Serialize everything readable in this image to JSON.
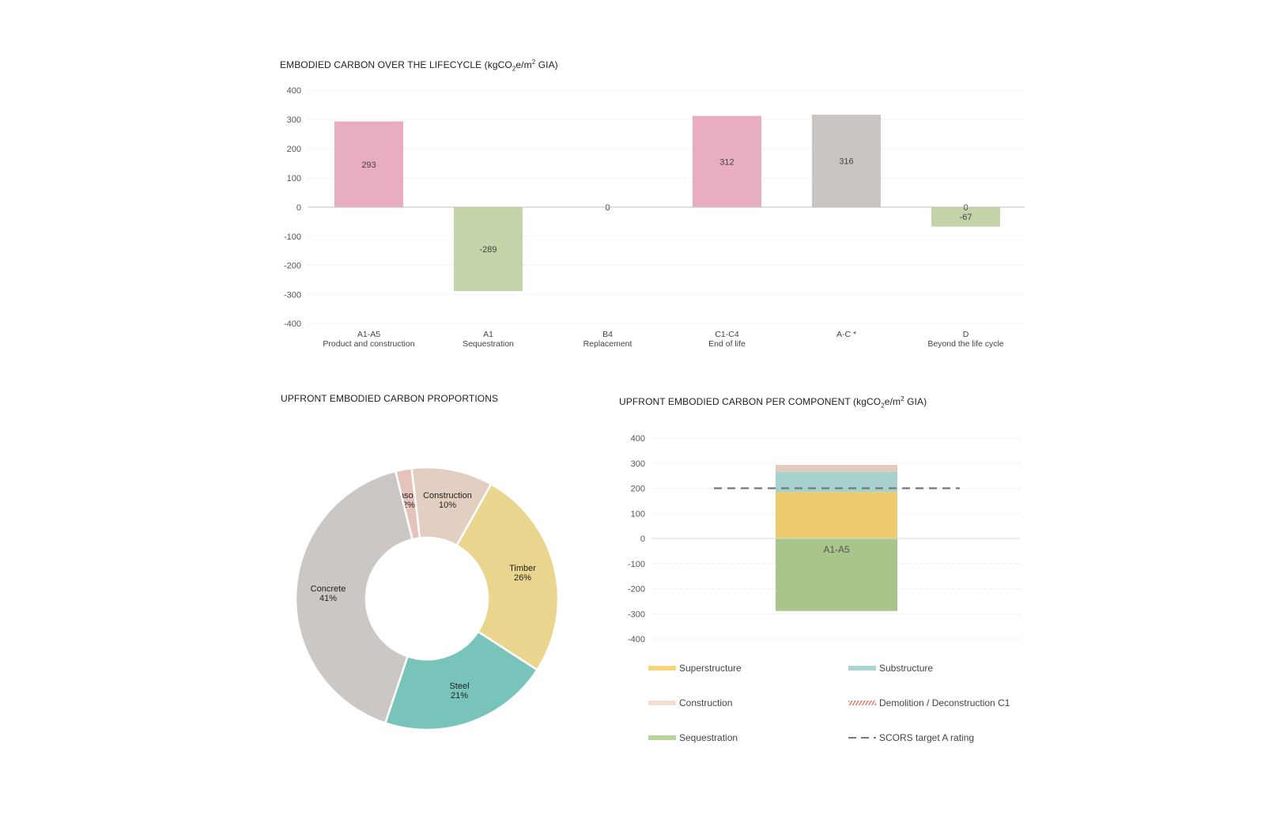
{
  "chart_data": [
    {
      "id": "lifecycle",
      "type": "bar",
      "title_main": "EMBODIED CARBON OVER THE LIFECYCLE (kgCO",
      "title_sub": "2",
      "title_mid": "e/m",
      "title_sup": "2",
      "title_end": " GIA)",
      "ylim": [
        -400,
        400
      ],
      "yticks": [
        400,
        300,
        200,
        100,
        0,
        -100,
        -200,
        -300,
        -400
      ],
      "grid": true,
      "categories": [
        {
          "code": "A1-A5",
          "desc": "Product and construction",
          "value": 293,
          "color": "#e8adc0",
          "label": "293",
          "label_color": "#555"
        },
        {
          "code": "A1",
          "desc": "Sequestration",
          "value": -289,
          "color": "#c3d4a9",
          "label": "-289",
          "label_color": "#222"
        },
        {
          "code": "B4",
          "desc": "Replacement",
          "value": 0,
          "color": "#cccccc",
          "label": "0",
          "label_color": "#555"
        },
        {
          "code": "C1-C4",
          "desc": "End of life",
          "value": 312,
          "color": "#e8adc0",
          "label": "312",
          "label_color": "#555"
        },
        {
          "code": "A-C *",
          "desc": "",
          "value": 316,
          "color": "#c9c5c2",
          "label": "316",
          "label_color": "#111"
        },
        {
          "code": "D",
          "desc": "Beyond the life cycle",
          "value": -67,
          "color": "#c3d4a9",
          "label": "-67",
          "label_extra": "0",
          "label_color": "#555"
        }
      ]
    },
    {
      "id": "proportions",
      "type": "pie",
      "title": "UPFRONT EMBODIED CARBON PROPORTIONS",
      "donut": true,
      "slices": [
        {
          "name": "Masonry",
          "value": 2,
          "label": "2%",
          "color": "#e4c3bb"
        },
        {
          "name": "Construction",
          "value": 10,
          "label": "10%",
          "color": "#e3cfc1"
        },
        {
          "name": "Timber",
          "value": 26,
          "label": "26%",
          "color": "#ead58e"
        },
        {
          "name": "Steel",
          "value": 21,
          "label": "21%",
          "color": "#78c4bb"
        },
        {
          "name": "Concrete",
          "value": 41,
          "label": "41%",
          "color": "#cbc7c4"
        }
      ]
    },
    {
      "id": "per_component",
      "type": "bar",
      "stacked": true,
      "title_main": "UPFRONT EMBODIED CARBON PER COMPONENT (kgCO",
      "title_sub": "2",
      "title_mid": "e/m",
      "title_sup": "2",
      "title_end": " GIA)",
      "ylim": [
        -400,
        400
      ],
      "yticks": [
        400,
        300,
        200,
        100,
        0,
        -100,
        -200,
        -300,
        -400
      ],
      "grid": true,
      "categories": [
        "A1-A5"
      ],
      "series": [
        {
          "name": "Superstructure",
          "values": [
            185
          ],
          "color": "#ebcb6e"
        },
        {
          "name": "Substructure",
          "values": [
            80
          ],
          "color": "#a6d1cd"
        },
        {
          "name": "Construction",
          "values": [
            28
          ],
          "color": "#e3cbbc"
        },
        {
          "name": "Sequestration",
          "values": [
            -289
          ],
          "color": "#a9c58c"
        }
      ],
      "target_line": {
        "name": "SCORS target A rating",
        "value": 200,
        "color": "#777777"
      },
      "legend": [
        {
          "name": "Superstructure",
          "style": "solid",
          "color": "#f5d77a"
        },
        {
          "name": "Substructure",
          "style": "solid",
          "color": "#a9d5d6"
        },
        {
          "name": "Construction",
          "style": "solid",
          "color": "#f3ddd2"
        },
        {
          "name": "Demolition / Deconstruction C1",
          "style": "hatch",
          "color": "#e07a6a"
        },
        {
          "name": "Sequestration",
          "style": "solid",
          "color": "#b5d69a"
        },
        {
          "name": "SCORS target A rating",
          "style": "dash",
          "color": "#777777"
        }
      ],
      "legend_placement": "bottom"
    }
  ]
}
